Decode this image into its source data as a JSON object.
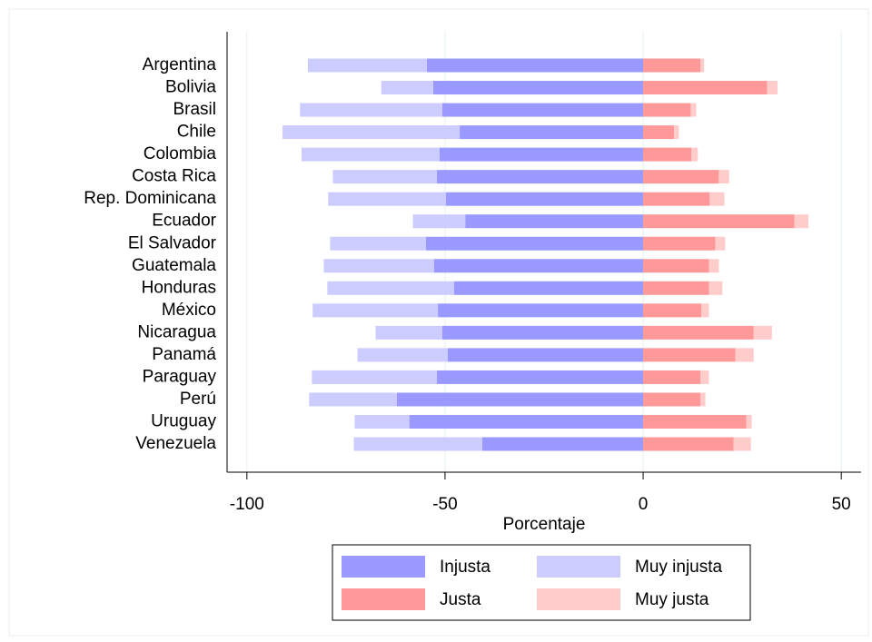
{
  "chart_data": {
    "type": "bar",
    "orientation": "horizontal",
    "stacked": true,
    "categories": [
      "Argentina",
      "Bolivia",
      "Brasil",
      "Chile",
      "Colombia",
      "Costa Rica",
      "Rep. Dominicana",
      "Ecuador",
      "El Salvador",
      "Guatemala",
      "Honduras",
      "México",
      "Nicaragua",
      "Panamá",
      "Paraguay",
      "Perú",
      "Uruguay",
      "Venezuela"
    ],
    "series": [
      {
        "name": "Injusta",
        "color": "#9999ff",
        "values": [
          -54.6,
          -53.0,
          -50.7,
          -46.3,
          -51.4,
          -52.1,
          -49.8,
          -44.9,
          -54.8,
          -52.8,
          -47.7,
          -51.8,
          -50.7,
          -49.3,
          -52.1,
          -62.2,
          -59.0,
          -40.6
        ]
      },
      {
        "name": "Muy injusta",
        "color": "#ccccff",
        "values": [
          -30.0,
          -13.1,
          -35.9,
          -44.7,
          -34.8,
          -26.2,
          -29.7,
          -13.2,
          -24.2,
          -27.8,
          -32.0,
          -31.6,
          -16.8,
          -22.8,
          -31.5,
          -22.1,
          -13.8,
          -32.4
        ]
      },
      {
        "name": "Justa",
        "color": "#ff9999",
        "values": [
          14.5,
          31.3,
          12.0,
          7.8,
          12.2,
          19.1,
          16.8,
          38.2,
          18.2,
          16.6,
          16.6,
          14.7,
          27.9,
          23.3,
          14.5,
          14.5,
          26.0,
          22.8
        ]
      },
      {
        "name": "Muy justa",
        "color": "#ffcccc",
        "values": [
          0.9,
          2.6,
          1.4,
          1.2,
          1.6,
          2.6,
          3.7,
          3.5,
          2.5,
          2.5,
          3.4,
          1.9,
          4.6,
          4.6,
          2.1,
          1.2,
          1.4,
          4.4
        ]
      }
    ],
    "x_label": "Porcentaje",
    "xlim": [
      -105,
      55
    ],
    "xticks": [
      -100,
      -50,
      0,
      50
    ],
    "grid": true,
    "legend": "bottom"
  }
}
